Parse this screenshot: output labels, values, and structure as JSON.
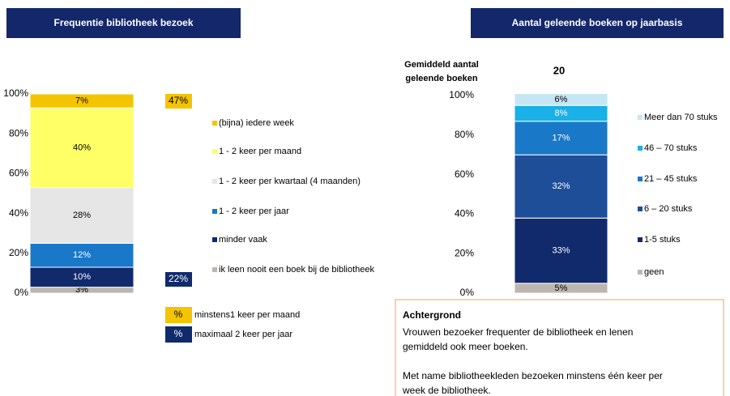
{
  "chart_data": [
    {
      "type": "stacked_bar",
      "title": "Frequentie bibliotheek bezoek",
      "ylim": [
        0,
        100
      ],
      "yticks": [
        {
          "value": 0,
          "label": "0%"
        },
        {
          "value": 20,
          "label": "20%"
        },
        {
          "value": 40,
          "label": "40%"
        },
        {
          "value": 60,
          "label": "60%"
        },
        {
          "value": 80,
          "label": "80%"
        },
        {
          "value": 100,
          "label": "100%"
        }
      ],
      "series": [
        {
          "name": "ik leen nooit een boek bij de bibliotheek",
          "color": "#bdb6b0",
          "values": [
            3
          ],
          "value_labels": [
            "3%"
          ]
        },
        {
          "name": "minder vaak",
          "color": "#102a6c",
          "values": [
            10
          ],
          "value_labels": [
            "10%"
          ]
        },
        {
          "name": "1 - 2 keer per jaar",
          "color": "#1a78c8",
          "values": [
            12
          ],
          "value_labels": [
            "12%"
          ]
        },
        {
          "name": "1 - 2 keer per kwartaal (4 maanden)",
          "color": "#e6e6e6",
          "values": [
            28
          ],
          "value_labels": [
            "28%"
          ]
        },
        {
          "name": "1 - 2 keer per maand",
          "color": "#ffff66",
          "values": [
            40
          ],
          "value_labels": [
            "40%"
          ]
        },
        {
          "name": "(bijna) iedere week",
          "color": "#f5c400",
          "values": [
            7
          ],
          "value_labels": [
            "7%"
          ]
        }
      ],
      "summary": [
        {
          "value": 47,
          "label": "47%",
          "color": "#f5c400",
          "symbol": "%",
          "text": "minstens1 keer per maand"
        },
        {
          "value": 22,
          "label": "22%",
          "color": "#102a6c",
          "symbol": "%",
          "text": "maximaal 2 keer per jaar"
        }
      ]
    },
    {
      "type": "stacked_bar",
      "title": "Aantal geleende boeken op jaarbasis",
      "average_label": [
        "Gemiddeld aantal",
        "geleende boeken"
      ],
      "average": 20,
      "ylim": [
        0,
        100
      ],
      "yticks": [
        {
          "value": 0,
          "label": "0%"
        },
        {
          "value": 20,
          "label": "20%"
        },
        {
          "value": 40,
          "label": "40%"
        },
        {
          "value": 60,
          "label": "60%"
        },
        {
          "value": 80,
          "label": "80%"
        },
        {
          "value": 100,
          "label": "100%"
        }
      ],
      "series": [
        {
          "name": "geen",
          "color": "#bdb6b0",
          "values": [
            5
          ],
          "value_labels": [
            "5%"
          ]
        },
        {
          "name": "1-5 stuks",
          "color": "#102a6c",
          "values": [
            33
          ],
          "value_labels": [
            "33%"
          ]
        },
        {
          "name": "6 – 20 stuks",
          "color": "#1f4e99",
          "values": [
            32
          ],
          "value_labels": [
            "32%"
          ]
        },
        {
          "name": "21 – 45 stuks",
          "color": "#1a78c8",
          "values": [
            17
          ],
          "value_labels": [
            "17%"
          ]
        },
        {
          "name": "46 – 70 stuks",
          "color": "#1ab0e8",
          "values": [
            8
          ],
          "value_labels": [
            "8%"
          ]
        },
        {
          "name": "Meer dan 70 stuks",
          "color": "#c6e6f5",
          "values": [
            6
          ],
          "value_labels": [
            "6%"
          ]
        }
      ]
    }
  ],
  "background": {
    "title": "Achtergrond",
    "paragraphs": [
      [
        "Vrouwen bezoeker frequenter de bibliotheek en lenen",
        "gemiddeld ook meer boeken."
      ],
      [
        "Met name bibliotheekleden bezoeken minstens één keer per",
        "week de bibliotheek."
      ]
    ]
  }
}
